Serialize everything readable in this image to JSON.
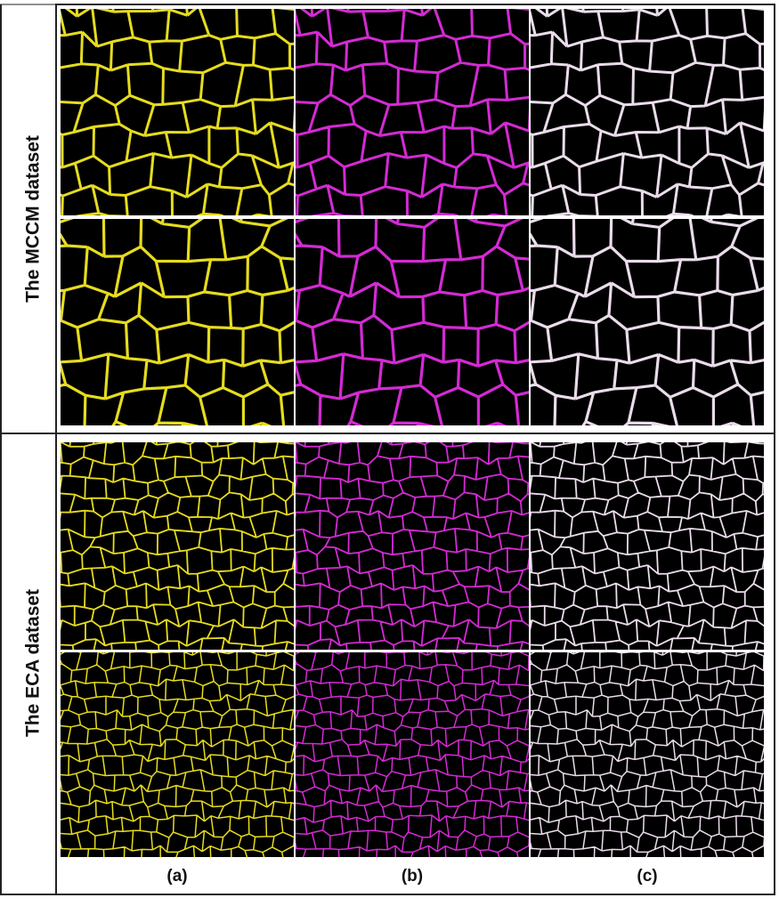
{
  "labels": {
    "row_groups": [
      "The MCCM dataset",
      "The ECA dataset"
    ],
    "columns": [
      "(a)",
      "(b)",
      "(c)"
    ]
  }
}
